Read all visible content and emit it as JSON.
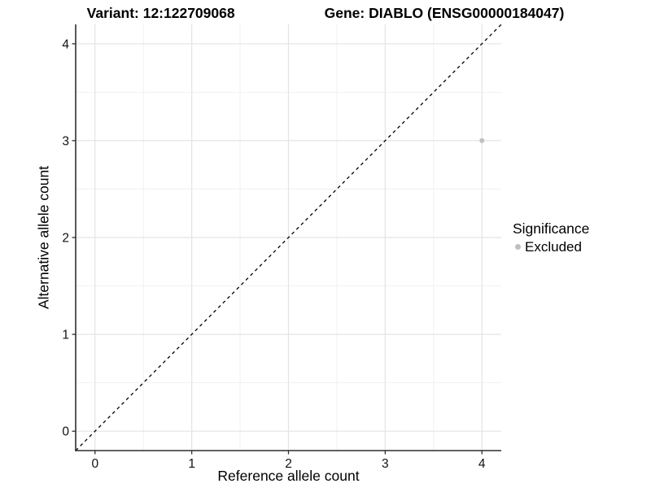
{
  "header": {
    "variant_title": "Variant: 12:122709068",
    "gene_title": "Gene: DIABLO (ENSG00000184047)"
  },
  "chart_data": {
    "type": "scatter",
    "title_left": "Variant: 12:122709068",
    "title_right": "Gene: DIABLO (ENSG00000184047)",
    "xlabel": "Reference allele count",
    "ylabel": "Alternative allele count",
    "xlim": [
      -0.2,
      4.2
    ],
    "ylim": [
      -0.2,
      4.2
    ],
    "x_ticks": [
      0,
      1,
      2,
      3,
      4
    ],
    "y_ticks": [
      0,
      1,
      2,
      3,
      4
    ],
    "minor_grid_step": 0.5,
    "grid": true,
    "legend_position": "right",
    "identity_line": {
      "slope": 1,
      "intercept": 0,
      "style": "dashed",
      "color": "#000000"
    },
    "points": [
      {
        "x": 4,
        "y": 3,
        "series": "Excluded"
      }
    ],
    "series": [
      {
        "name": "Excluded",
        "color": "#bfbfbf"
      }
    ],
    "legend": {
      "title": "Significance",
      "items": [
        {
          "label": "Excluded",
          "color": "#bfbfbf",
          "marker": "dot-icon"
        }
      ]
    },
    "colors": {
      "background": "#ffffff",
      "grid_major": "#e4e4e4",
      "grid_minor": "#f1f1f1",
      "axis_line": "#2f2f2f",
      "tick_label": "#111111",
      "point": "#bfbfbf",
      "abline": "#000000"
    }
  }
}
